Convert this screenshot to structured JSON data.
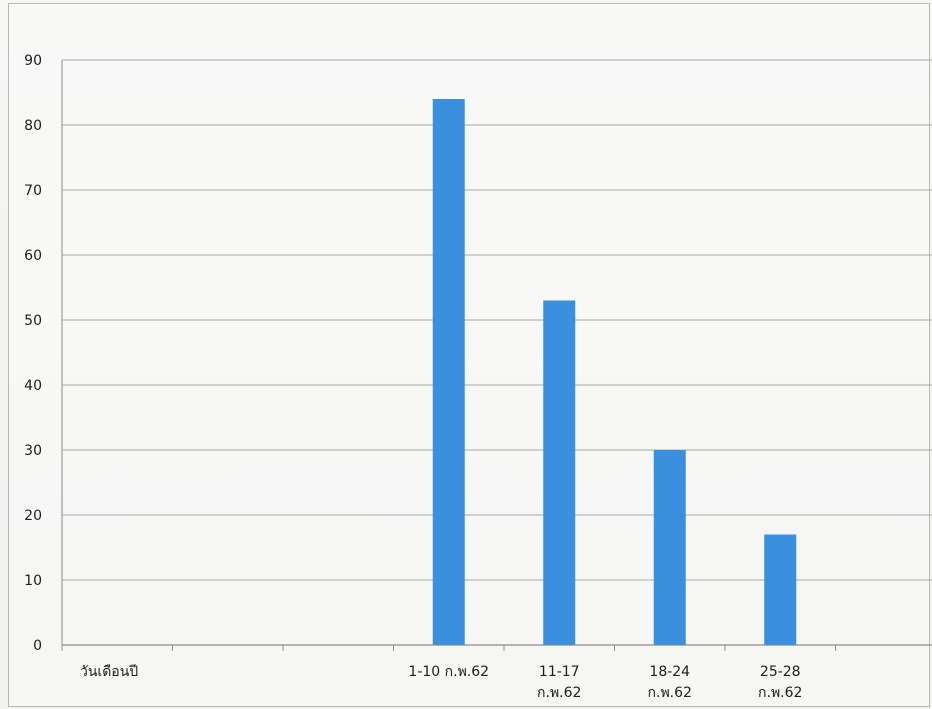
{
  "chart_data": {
    "type": "bar",
    "title": "",
    "xlabel": "",
    "ylabel": "",
    "ylim": [
      0,
      90
    ],
    "yticks": [
      0,
      10,
      20,
      30,
      40,
      50,
      60,
      70,
      80,
      90
    ],
    "grid": true,
    "legend": "none",
    "bar_color": "#3b8fdf",
    "categories": [
      [
        "วันเดือนปี"
      ],
      [],
      [],
      [
        "1-10 ก.พ.62"
      ],
      [
        "11-17",
        "ก.พ.62"
      ],
      [
        "18-24",
        "ก.พ.62"
      ],
      [
        "25-28",
        "ก.พ.62"
      ],
      []
    ],
    "values": [
      null,
      null,
      null,
      84,
      53,
      30,
      17,
      null
    ]
  }
}
